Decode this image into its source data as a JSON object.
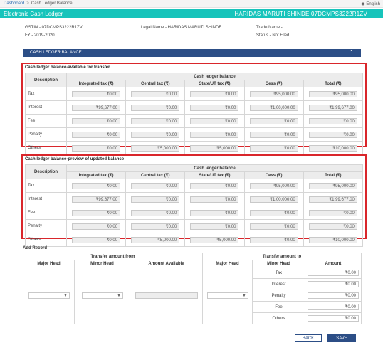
{
  "breadcrumb": {
    "home": "Dashboard",
    "separator": ">",
    "current": "Cash Ledger Balance"
  },
  "language": {
    "icon": "globe-icon",
    "label": "English"
  },
  "header": {
    "title": "Electronic Cash Ledger",
    "user": "HARIDAS MARUTI SHINDE 07DCMPS3222R1ZV"
  },
  "taxpayer": {
    "gstin": "GSTIN - 07DCMPS3222R1ZV",
    "fy": "FY - 2019-2020",
    "legal_name": "Legal Name - HARIDAS MARUTI SHINDE",
    "trade_name": "Trade Name -",
    "status": "Status - Not Filed"
  },
  "section": {
    "title": "CASH LEDGER BALANCE",
    "toggle_icon": "chevron-up-icon",
    "bar_color": "#2c4e86"
  },
  "table_headers": {
    "description": "Description",
    "group": "Cash ledger balance",
    "cols": [
      "Integrated tax (₹)",
      "Central tax (₹)",
      "State/UT tax (₹)",
      "Cess (₹)",
      "Total (₹)"
    ]
  },
  "available": {
    "title": "Cash ledger balance-available for transfer",
    "rows": [
      {
        "label": "Tax",
        "values": [
          "₹0.00",
          "₹0.00",
          "₹0.00",
          "₹95,000.00",
          "₹95,000.00"
        ]
      },
      {
        "label": "Interest",
        "values": [
          "₹99,677.00",
          "₹0.00",
          "₹0.00",
          "₹1,00,000.00",
          "₹1,99,677.00"
        ]
      },
      {
        "label": "Fee",
        "values": [
          "₹0.00",
          "₹0.00",
          "₹0.00",
          "₹0.00",
          "₹0.00"
        ]
      },
      {
        "label": "Penalty",
        "values": [
          "₹0.00",
          "₹0.00",
          "₹0.00",
          "₹0.00",
          "₹0.00"
        ]
      },
      {
        "label": "Others",
        "values": [
          "₹0.00",
          "₹5,000.00",
          "₹5,000.00",
          "₹0.00",
          "₹10,000.00"
        ]
      }
    ]
  },
  "preview": {
    "title": "Cash ledger balance-preview of updated balance",
    "rows": [
      {
        "label": "Tax",
        "values": [
          "₹0.00",
          "₹0.00",
          "₹0.00",
          "₹95,000.00",
          "₹95,000.00"
        ]
      },
      {
        "label": "Interest",
        "values": [
          "₹99,677.00",
          "₹0.00",
          "₹0.00",
          "₹1,00,000.00",
          "₹1,99,677.00"
        ]
      },
      {
        "label": "Fee",
        "values": [
          "₹0.00",
          "₹0.00",
          "₹0.00",
          "₹0.00",
          "₹0.00"
        ]
      },
      {
        "label": "Penalty",
        "values": [
          "₹0.00",
          "₹0.00",
          "₹0.00",
          "₹0.00",
          "₹0.00"
        ]
      },
      {
        "label": "Others",
        "values": [
          "₹0.00",
          "₹5,000.00",
          "₹5,000.00",
          "₹0.00",
          "₹10,000.00"
        ]
      }
    ]
  },
  "add_record": {
    "title": "Add Record",
    "from_label": "Transfer amount from",
    "to_label": "Transfer amount to",
    "cols": {
      "major_head": "Major Head",
      "minor_head": "Minor Head",
      "amount_available": "Amount Available",
      "amount": "Amount"
    },
    "to_rows": [
      {
        "minor": "Tax",
        "amount": "₹0.00"
      },
      {
        "minor": "Interest",
        "amount": "₹0.00"
      },
      {
        "minor": "Penalty",
        "amount": "₹0.00"
      },
      {
        "minor": "Fee",
        "amount": "₹0.00"
      },
      {
        "minor": "Others",
        "amount": "₹0.00"
      }
    ]
  },
  "buttons": {
    "back": "BACK",
    "save": "SAVE"
  },
  "colors": {
    "title_bar": "#17c4bb",
    "highlight_border": "#d9262b",
    "primary": "#2c4e86"
  }
}
